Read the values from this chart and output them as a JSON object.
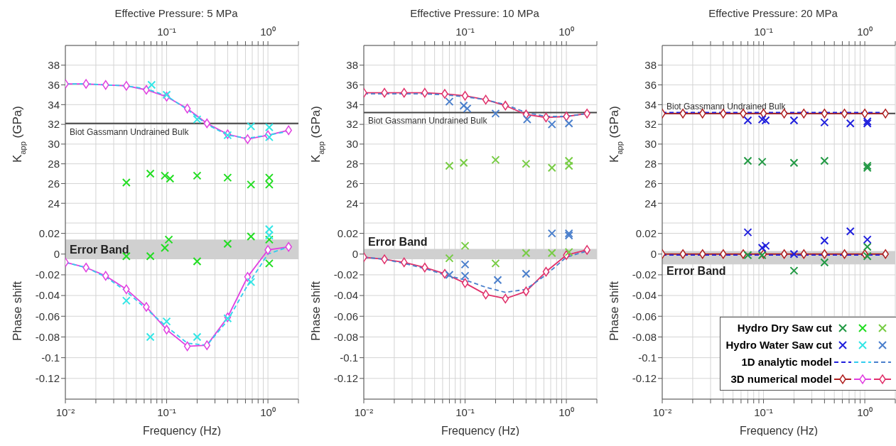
{
  "chart_data": [
    {
      "type": "line",
      "title": "Effective Pressure: 5 MPa",
      "ylabel": "K$_{app}$ (GPa)",
      "xlim": [
        0.01,
        2
      ],
      "xticks": [
        {
          "value": 0.02,
          "label": null
        },
        {
          "value": 0.03,
          "label": null
        },
        {
          "value": 0.04,
          "label": null
        },
        {
          "value": 0.05,
          "label": null
        },
        {
          "value": 0.06,
          "label": null
        },
        {
          "value": 0.07,
          "label": null
        },
        {
          "value": 0.08,
          "label": null
        },
        {
          "value": 0.09,
          "label": null
        },
        {
          "value": 0.1,
          "label": "10⁻¹"
        },
        {
          "value": 0.2,
          "label": null
        },
        {
          "value": 0.3,
          "label": null
        },
        {
          "value": 0.4,
          "label": null
        },
        {
          "value": 0.5,
          "label": null
        },
        {
          "value": 0.6,
          "label": null
        },
        {
          "value": 0.7,
          "label": null
        },
        {
          "value": 0.8,
          "label": null
        },
        {
          "value": 0.9,
          "label": null
        },
        {
          "value": 1,
          "label": "10⁰"
        },
        {
          "value": 2,
          "label": null
        }
      ],
      "ylim": [
        22,
        40
      ],
      "yticks": [
        24,
        26,
        28,
        30,
        32,
        34,
        36,
        38
      ],
      "grid": true,
      "log": "x",
      "ref_lines": [
        {
          "axis": "y",
          "value": 32.1,
          "label": "Biot Gassmann Undrained Bulk",
          "color": "#444444"
        }
      ],
      "series": [
        {
          "type": "scatter",
          "color": "#22dd22",
          "marker": "cross",
          "x": [
            0.04,
            0.069,
            0.096,
            0.108,
            0.2,
            0.4,
            0.68,
            1.03,
            1.03
          ],
          "values": [
            26.1,
            27.0,
            26.8,
            26.5,
            26.8,
            26.6,
            25.9,
            26.6,
            25.9
          ]
        },
        {
          "type": "scatter",
          "color": "#33e6e6",
          "marker": "cross",
          "x": [
            0.071,
            0.1,
            0.2,
            0.4,
            0.68,
            1.03,
            1.03
          ],
          "values": [
            36.0,
            35.0,
            32.5,
            30.9,
            31.8,
            31.7,
            30.7
          ]
        },
        {
          "type": "line",
          "color": "#33ccee",
          "line_style": "dashed",
          "marker": "none",
          "x": [
            0.01,
            0.016,
            0.025,
            0.04,
            0.063,
            0.1,
            0.16,
            0.25,
            0.4,
            0.63,
            1,
            1.6
          ],
          "values": [
            36.1,
            36.1,
            36.0,
            35.9,
            35.6,
            34.9,
            33.5,
            32.0,
            30.9,
            30.6,
            30.9,
            31.3
          ]
        },
        {
          "type": "line",
          "color": "#e040e0",
          "line_style": "solid",
          "marker": "diamond",
          "x": [
            0.01,
            0.016,
            0.025,
            0.04,
            0.063,
            0.1,
            0.16,
            0.25,
            0.4,
            0.63,
            1,
            1.6
          ],
          "values": [
            36.1,
            36.1,
            36.0,
            35.9,
            35.5,
            34.8,
            33.6,
            32.1,
            31.0,
            30.5,
            30.9,
            31.4
          ]
        }
      ]
    },
    {
      "type": "line",
      "title": "Effective Pressure: 10 MPa",
      "ylabel": "K$_{app}$ (GPa)",
      "xlim": [
        0.01,
        2
      ],
      "xticks": [
        {
          "value": 0.02,
          "label": null
        },
        {
          "value": 0.03,
          "label": null
        },
        {
          "value": 0.04,
          "label": null
        },
        {
          "value": 0.05,
          "label": null
        },
        {
          "value": 0.06,
          "label": null
        },
        {
          "value": 0.07,
          "label": null
        },
        {
          "value": 0.08,
          "label": null
        },
        {
          "value": 0.09,
          "label": null
        },
        {
          "value": 0.1,
          "label": "10⁻¹"
        },
        {
          "value": 0.2,
          "label": null
        },
        {
          "value": 0.3,
          "label": null
        },
        {
          "value": 0.4,
          "label": null
        },
        {
          "value": 0.5,
          "label": null
        },
        {
          "value": 0.6,
          "label": null
        },
        {
          "value": 0.7,
          "label": null
        },
        {
          "value": 0.8,
          "label": null
        },
        {
          "value": 0.9,
          "label": null
        },
        {
          "value": 1,
          "label": "10⁰"
        },
        {
          "value": 2,
          "label": null
        }
      ],
      "ylim": [
        22,
        40
      ],
      "yticks": [
        24,
        26,
        28,
        30,
        32,
        34,
        36,
        38
      ],
      "grid": true,
      "log": "x",
      "ref_lines": [
        {
          "axis": "y",
          "value": 33.2,
          "label": "Biot Gassmann Undrained Bulk",
          "color": "#444444"
        }
      ],
      "series": [
        {
          "type": "scatter",
          "color": "#77cc44",
          "marker": "cross",
          "x": [
            0.07,
            0.097,
            0.2,
            0.4,
            0.72,
            1.06,
            1.06
          ],
          "values": [
            27.8,
            28.1,
            28.4,
            28.0,
            27.6,
            28.3,
            27.8
          ]
        },
        {
          "type": "scatter",
          "color": "#4a7fcc",
          "marker": "cross",
          "x": [
            0.07,
            0.097,
            0.105,
            0.2,
            0.41,
            0.72,
            1.06
          ],
          "values": [
            34.3,
            33.9,
            33.6,
            33.1,
            32.5,
            32.0,
            32.1
          ]
        },
        {
          "type": "line",
          "color": "#4a7fcc",
          "line_style": "dashed",
          "marker": "none",
          "x": [
            0.01,
            0.016,
            0.025,
            0.04,
            0.063,
            0.1,
            0.16,
            0.25,
            0.4,
            0.63,
            1,
            1.6
          ],
          "values": [
            35.1,
            35.1,
            35.1,
            35.1,
            35.0,
            34.8,
            34.5,
            34.0,
            33.2,
            32.8,
            32.8,
            33.1
          ]
        },
        {
          "type": "line",
          "color": "#e0306a",
          "line_style": "solid",
          "marker": "diamond",
          "x": [
            0.01,
            0.016,
            0.025,
            0.04,
            0.063,
            0.1,
            0.16,
            0.25,
            0.4,
            0.63,
            1,
            1.6
          ],
          "values": [
            35.2,
            35.2,
            35.2,
            35.2,
            35.1,
            34.9,
            34.5,
            33.9,
            33.0,
            32.7,
            32.8,
            33.1
          ]
        }
      ]
    },
    {
      "type": "line",
      "title": "Effective Pressure: 20 MPa",
      "ylabel": "K$_{app}$ (GPa)",
      "xlim": [
        0.01,
        2
      ],
      "xticks": [
        {
          "value": 0.02,
          "label": null
        },
        {
          "value": 0.03,
          "label": null
        },
        {
          "value": 0.04,
          "label": null
        },
        {
          "value": 0.05,
          "label": null
        },
        {
          "value": 0.06,
          "label": null
        },
        {
          "value": 0.07,
          "label": null
        },
        {
          "value": 0.08,
          "label": null
        },
        {
          "value": 0.09,
          "label": null
        },
        {
          "value": 0.1,
          "label": "10⁻¹"
        },
        {
          "value": 0.2,
          "label": null
        },
        {
          "value": 0.3,
          "label": null
        },
        {
          "value": 0.4,
          "label": null
        },
        {
          "value": 0.5,
          "label": null
        },
        {
          "value": 0.6,
          "label": null
        },
        {
          "value": 0.7,
          "label": null
        },
        {
          "value": 0.8,
          "label": null
        },
        {
          "value": 0.9,
          "label": null
        },
        {
          "value": 1,
          "label": "10⁰"
        },
        {
          "value": 2,
          "label": null
        }
      ],
      "ylim": [
        22,
        40
      ],
      "yticks": [
        24,
        26,
        28,
        30,
        32,
        34,
        36,
        38
      ],
      "grid": true,
      "log": "x",
      "ref_lines": [
        {
          "axis": "y",
          "value": 33.1,
          "label": "Biot Gassmann Undrained Bulk",
          "color": "#444444"
        }
      ],
      "series": [
        {
          "type": "scatter",
          "color": "#229944",
          "marker": "cross",
          "x": [
            0.07,
            0.097,
            0.2,
            0.4,
            1.06,
            1.06
          ],
          "values": [
            28.3,
            28.2,
            28.1,
            28.3,
            27.8,
            27.6
          ]
        },
        {
          "type": "scatter",
          "color": "#2020dd",
          "marker": "cross",
          "x": [
            0.07,
            0.097,
            0.105,
            0.2,
            0.4,
            0.72,
            1.06,
            1.06
          ],
          "values": [
            32.4,
            32.5,
            32.4,
            32.4,
            32.2,
            32.1,
            32.3,
            32.1
          ]
        },
        {
          "type": "line",
          "color": "#2020dd",
          "line_style": "dashed",
          "marker": "none",
          "x": [
            0.01,
            0.016,
            0.025,
            0.04,
            0.063,
            0.1,
            0.16,
            0.25,
            0.4,
            0.63,
            1,
            1.6
          ],
          "values": [
            33.2,
            33.2,
            33.2,
            33.2,
            33.2,
            33.2,
            33.2,
            33.2,
            33.2,
            33.2,
            33.2,
            33.2
          ]
        },
        {
          "type": "line",
          "color": "#b02020",
          "line_style": "solid",
          "marker": "diamond",
          "x": [
            0.01,
            0.016,
            0.025,
            0.04,
            0.063,
            0.1,
            0.16,
            0.25,
            0.4,
            0.63,
            1,
            1.6
          ],
          "values": [
            33.1,
            33.1,
            33.1,
            33.1,
            33.1,
            33.1,
            33.1,
            33.1,
            33.1,
            33.1,
            33.1,
            33.1
          ]
        }
      ]
    },
    {
      "type": "line",
      "xlabel": "Frequency (Hz)",
      "ylabel": "Phase shift",
      "xlim": [
        0.01,
        2
      ],
      "xticks": [
        {
          "value": 0.01,
          "label": "10⁻²"
        },
        {
          "value": 0.02,
          "label": null
        },
        {
          "value": 0.03,
          "label": null
        },
        {
          "value": 0.04,
          "label": null
        },
        {
          "value": 0.05,
          "label": null
        },
        {
          "value": 0.06,
          "label": null
        },
        {
          "value": 0.07,
          "label": null
        },
        {
          "value": 0.08,
          "label": null
        },
        {
          "value": 0.09,
          "label": null
        },
        {
          "value": 0.1,
          "label": "10⁻¹"
        },
        {
          "value": 0.2,
          "label": null
        },
        {
          "value": 0.3,
          "label": null
        },
        {
          "value": 0.4,
          "label": null
        },
        {
          "value": 0.5,
          "label": null
        },
        {
          "value": 0.6,
          "label": null
        },
        {
          "value": 0.7,
          "label": null
        },
        {
          "value": 0.8,
          "label": null
        },
        {
          "value": 0.9,
          "label": null
        },
        {
          "value": 1,
          "label": "10⁰"
        },
        {
          "value": 2,
          "label": null
        }
      ],
      "ylim": [
        -0.14,
        0.03
      ],
      "yticks": [
        -0.12,
        -0.1,
        -0.08,
        -0.06,
        -0.04,
        -0.02,
        0,
        0.02
      ],
      "grid": true,
      "log": "x",
      "bands": [
        {
          "axis": "y",
          "from": -0.005,
          "to": 0.014,
          "label": "Error Band",
          "color": "#d0d0d0"
        }
      ],
      "series": [
        {
          "type": "scatter",
          "color": "#22dd22",
          "marker": "cross",
          "x": [
            0.04,
            0.069,
            0.096,
            0.105,
            0.2,
            0.4,
            0.68,
            1.03,
            1.03
          ],
          "values": [
            -0.002,
            -0.002,
            0.006,
            0.014,
            -0.007,
            0.01,
            0.017,
            0.014,
            -0.009
          ]
        },
        {
          "type": "scatter",
          "color": "#33e6e6",
          "marker": "cross",
          "x": [
            0.04,
            0.069,
            0.1,
            0.2,
            0.4,
            0.68,
            1.03,
            1.03
          ],
          "values": [
            -0.045,
            -0.08,
            -0.065,
            -0.08,
            -0.062,
            -0.027,
            0.024,
            0.018
          ]
        },
        {
          "type": "line",
          "color": "#33ccee",
          "line_style": "dashed",
          "marker": "none",
          "x": [
            0.01,
            0.016,
            0.025,
            0.04,
            0.063,
            0.1,
            0.16,
            0.25,
            0.4,
            0.63,
            1,
            1.6
          ],
          "values": [
            -0.008,
            -0.013,
            -0.022,
            -0.036,
            -0.053,
            -0.07,
            -0.086,
            -0.088,
            -0.064,
            -0.03,
            0.0,
            0.007
          ]
        },
        {
          "type": "line",
          "color": "#e040e0",
          "line_style": "solid",
          "marker": "diamond",
          "x": [
            0.01,
            0.016,
            0.025,
            0.04,
            0.063,
            0.1,
            0.16,
            0.25,
            0.4,
            0.63,
            1,
            1.6
          ],
          "values": [
            -0.008,
            -0.013,
            -0.021,
            -0.034,
            -0.051,
            -0.073,
            -0.089,
            -0.088,
            -0.061,
            -0.022,
            0.004,
            0.007
          ]
        }
      ]
    },
    {
      "type": "line",
      "xlabel": "Frequency (Hz)",
      "ylabel": "Phase shift",
      "xlim": [
        0.01,
        2
      ],
      "xticks": [
        {
          "value": 0.01,
          "label": "10⁻²"
        },
        {
          "value": 0.02,
          "label": null
        },
        {
          "value": 0.03,
          "label": null
        },
        {
          "value": 0.04,
          "label": null
        },
        {
          "value": 0.05,
          "label": null
        },
        {
          "value": 0.06,
          "label": null
        },
        {
          "value": 0.07,
          "label": null
        },
        {
          "value": 0.08,
          "label": null
        },
        {
          "value": 0.09,
          "label": null
        },
        {
          "value": 0.1,
          "label": "10⁻¹"
        },
        {
          "value": 0.2,
          "label": null
        },
        {
          "value": 0.3,
          "label": null
        },
        {
          "value": 0.4,
          "label": null
        },
        {
          "value": 0.5,
          "label": null
        },
        {
          "value": 0.6,
          "label": null
        },
        {
          "value": 0.7,
          "label": null
        },
        {
          "value": 0.8,
          "label": null
        },
        {
          "value": 0.9,
          "label": null
        },
        {
          "value": 1,
          "label": "10⁰"
        },
        {
          "value": 2,
          "label": null
        }
      ],
      "ylim": [
        -0.14,
        0.03
      ],
      "yticks": [
        -0.12,
        -0.1,
        -0.08,
        -0.06,
        -0.04,
        -0.02,
        0,
        0.02
      ],
      "grid": true,
      "log": "x",
      "bands": [
        {
          "axis": "y",
          "from": -0.005,
          "to": 0.005,
          "label": "Error Band",
          "color": "#d0d0d0"
        }
      ],
      "series": [
        {
          "type": "scatter",
          "color": "#77cc44",
          "marker": "cross",
          "x": [
            0.07,
            0.1,
            0.2,
            0.4,
            0.72,
            1.06
          ],
          "values": [
            -0.004,
            0.008,
            -0.009,
            0.001,
            0.001,
            0.002
          ]
        },
        {
          "type": "scatter",
          "color": "#4a7fcc",
          "marker": "cross",
          "x": [
            0.07,
            0.1,
            0.1,
            0.21,
            0.4,
            0.72,
            1.06,
            1.06
          ],
          "values": [
            -0.02,
            -0.01,
            -0.021,
            -0.025,
            -0.019,
            0.02,
            0.02,
            0.018
          ]
        },
        {
          "type": "line",
          "color": "#4a7fcc",
          "line_style": "dashed",
          "marker": "none",
          "x": [
            0.01,
            0.016,
            0.025,
            0.04,
            0.063,
            0.1,
            0.16,
            0.25,
            0.4,
            0.63,
            1,
            1.6
          ],
          "values": [
            -0.003,
            -0.005,
            -0.009,
            -0.014,
            -0.02,
            -0.025,
            -0.032,
            -0.037,
            -0.034,
            -0.02,
            -0.003,
            0.003
          ]
        },
        {
          "type": "line",
          "color": "#e0306a",
          "line_style": "solid",
          "marker": "diamond",
          "x": [
            0.01,
            0.016,
            0.025,
            0.04,
            0.063,
            0.1,
            0.16,
            0.25,
            0.4,
            0.63,
            1,
            1.6
          ],
          "values": [
            -0.003,
            -0.005,
            -0.008,
            -0.013,
            -0.019,
            -0.028,
            -0.039,
            -0.043,
            -0.036,
            -0.017,
            -0.001,
            0.004
          ]
        }
      ]
    },
    {
      "type": "line",
      "xlabel": "Frequency (Hz)",
      "ylabel": "Phase shift",
      "xlim": [
        0.01,
        2
      ],
      "xticks": [
        {
          "value": 0.01,
          "label": "10⁻²"
        },
        {
          "value": 0.02,
          "label": null
        },
        {
          "value": 0.03,
          "label": null
        },
        {
          "value": 0.04,
          "label": null
        },
        {
          "value": 0.05,
          "label": null
        },
        {
          "value": 0.06,
          "label": null
        },
        {
          "value": 0.07,
          "label": null
        },
        {
          "value": 0.08,
          "label": null
        },
        {
          "value": 0.09,
          "label": null
        },
        {
          "value": 0.1,
          "label": "10⁻¹"
        },
        {
          "value": 0.2,
          "label": null
        },
        {
          "value": 0.3,
          "label": null
        },
        {
          "value": 0.4,
          "label": null
        },
        {
          "value": 0.5,
          "label": null
        },
        {
          "value": 0.6,
          "label": null
        },
        {
          "value": 0.7,
          "label": null
        },
        {
          "value": 0.8,
          "label": null
        },
        {
          "value": 0.9,
          "label": null
        },
        {
          "value": 1,
          "label": "10⁰"
        },
        {
          "value": 2,
          "label": null
        }
      ],
      "ylim": [
        -0.14,
        0.03
      ],
      "yticks": [
        -0.12,
        -0.1,
        -0.08,
        -0.06,
        -0.04,
        -0.02,
        0,
        0.02
      ],
      "grid": true,
      "legend": "bottom right",
      "log": "x",
      "bands": [
        {
          "axis": "y",
          "from": -0.01,
          "to": 0.003,
          "label": "Error Band",
          "color": "#d0d0d0"
        }
      ],
      "series": [
        {
          "type": "scatter",
          "name": "Hydro Dry Saw cut",
          "color": "#229944",
          "marker": "cross",
          "x": [
            0.07,
            0.097,
            0.2,
            0.4,
            1.06,
            1.06
          ],
          "values": [
            -0.001,
            -0.001,
            -0.016,
            -0.008,
            0.007,
            -0.002
          ]
        },
        {
          "type": "scatter",
          "name": "Hydro Water Saw cut",
          "color": "#2020dd",
          "marker": "cross",
          "x": [
            0.07,
            0.097,
            0.105,
            0.2,
            0.4,
            0.72,
            1.06
          ],
          "values": [
            0.021,
            0.006,
            0.008,
            0.0,
            0.013,
            0.022,
            0.014
          ]
        },
        {
          "type": "line",
          "name": "1D analytic model",
          "color": "#2020dd",
          "line_style": "dashed",
          "marker": "none",
          "x": [
            0.01,
            0.016,
            0.025,
            0.04,
            0.063,
            0.1,
            0.16,
            0.25,
            0.4,
            0.63,
            1,
            1.6
          ],
          "values": [
            -0.001,
            -0.001,
            -0.001,
            -0.001,
            -0.001,
            -0.001,
            -0.001,
            -0.001,
            -0.001,
            -0.001,
            -0.001,
            -0.001
          ]
        },
        {
          "type": "line",
          "name": "3D numerical model",
          "color": "#b02020",
          "line_style": "solid",
          "marker": "diamond",
          "x": [
            0.01,
            0.016,
            0.025,
            0.04,
            0.063,
            0.1,
            0.16,
            0.25,
            0.4,
            0.63,
            1,
            1.6
          ],
          "values": [
            0,
            0,
            0,
            0,
            0,
            0,
            0,
            0,
            0,
            0,
            0,
            0
          ]
        }
      ]
    }
  ]
}
